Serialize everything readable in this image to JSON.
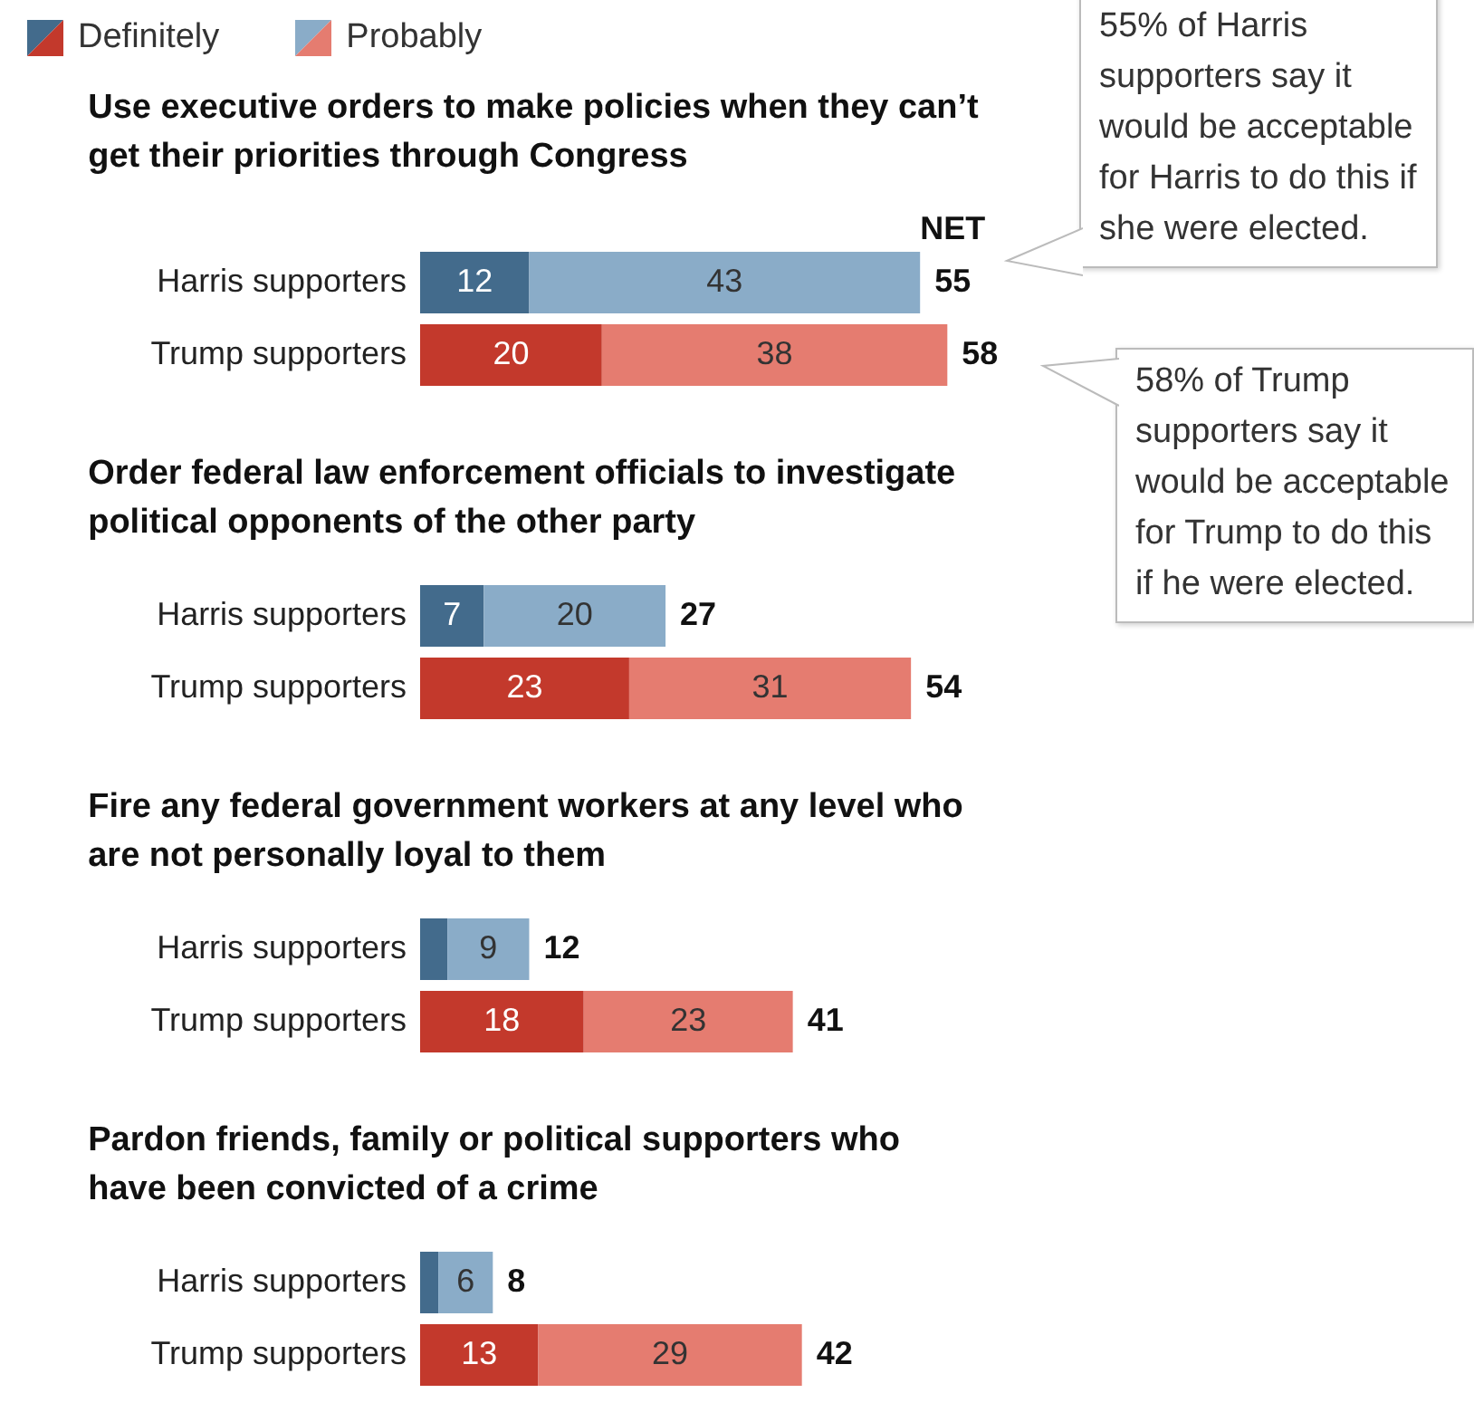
{
  "chart_data": [
    {
      "type": "bar",
      "orientation": "horizontal",
      "stacked": true,
      "tick_labels": "y",
      "legend": "top left",
      "title": "Use executive orders to make policies when they can’t get their priorities through Congress",
      "categories": [
        "Harris supporters",
        "Trump supporters"
      ],
      "series": [
        {
          "name": "Definitely",
          "colors": [
            "#436b8c",
            "#c3392c"
          ],
          "values": [
            12,
            20
          ],
          "value_labels": [
            "12",
            "20"
          ]
        },
        {
          "name": "Probably",
          "colors": [
            "#8aacc8",
            "#e57c70"
          ],
          "values": [
            43,
            38
          ],
          "value_labels": [
            "43",
            "38"
          ]
        }
      ],
      "totals": [
        "55",
        "58"
      ],
      "annotations": [
        "NET",
        "55% of Harris supporters say it would be acceptable for Harris to do this if she were elected.",
        "58% of Trump supporters say it would be acceptable for Trump to do this if he were elected."
      ]
    },
    {
      "type": "bar",
      "orientation": "horizontal",
      "stacked": true,
      "tick_labels": "y",
      "title": "Order federal law enforcement officials to investigate political opponents of the other party",
      "categories": [
        "Harris supporters",
        "Trump supporters"
      ],
      "series": [
        {
          "colors": [
            "#436b8c",
            "#c3392c"
          ],
          "values": [
            7,
            23
          ],
          "value_labels": [
            "7",
            "23"
          ]
        },
        {
          "colors": [
            "#8aacc8",
            "#e57c70"
          ],
          "values": [
            20,
            31
          ],
          "value_labels": [
            "20",
            "31"
          ]
        }
      ],
      "totals": [
        "27",
        "54"
      ]
    },
    {
      "type": "bar",
      "orientation": "horizontal",
      "stacked": true,
      "tick_labels": "y",
      "title": "Fire any federal government workers at any level who are not personally loyal to them",
      "categories": [
        "Harris supporters",
        "Trump supporters"
      ],
      "series": [
        {
          "colors": [
            "#436b8c",
            "#c3392c"
          ],
          "values": [
            3,
            18
          ],
          "value_labels": [
            null,
            "18"
          ]
        },
        {
          "colors": [
            "#8aacc8",
            "#e57c70"
          ],
          "values": [
            9,
            23
          ],
          "value_labels": [
            "9",
            "23"
          ]
        }
      ],
      "totals": [
        "12",
        "41"
      ]
    },
    {
      "type": "bar",
      "orientation": "horizontal",
      "stacked": true,
      "tick_labels": "y",
      "title": "Pardon friends, family or political supporters who have been convicted of a crime",
      "categories": [
        "Harris supporters",
        "Trump supporters"
      ],
      "series": [
        {
          "colors": [
            "#436b8c",
            "#c3392c"
          ],
          "values": [
            2,
            13
          ],
          "value_labels": [
            null,
            "13"
          ]
        },
        {
          "colors": [
            "#8aacc8",
            "#e57c70"
          ],
          "values": [
            6,
            29
          ],
          "value_labels": [
            "6",
            "29"
          ]
        }
      ],
      "totals": [
        "8",
        "42"
      ]
    }
  ]
}
